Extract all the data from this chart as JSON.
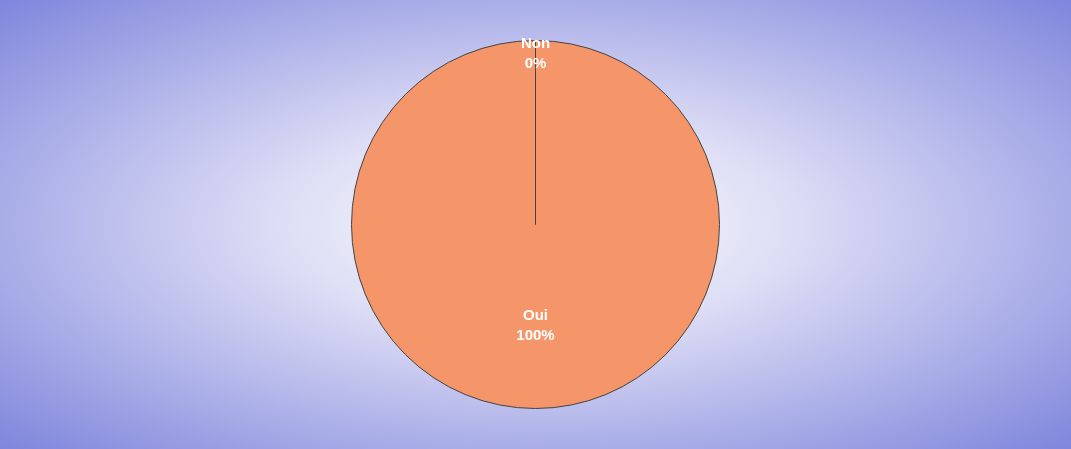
{
  "chart_data": {
    "type": "pie",
    "categories": [
      "Non",
      "Oui"
    ],
    "values": [
      0,
      100
    ],
    "colors": [
      "#4a6fd0",
      "#f4956a"
    ],
    "value_labels": [
      "0%",
      "100%"
    ],
    "legend": false
  }
}
